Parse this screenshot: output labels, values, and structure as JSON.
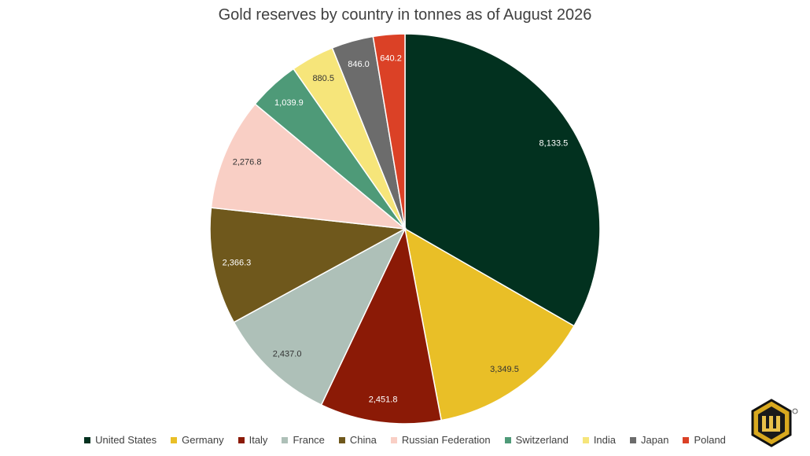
{
  "chart_data": {
    "type": "pie",
    "title": "Gold reserves by country in tonnes as of August 2026",
    "legend_position": "bottom",
    "categories": [
      "United States",
      "Germany",
      "Italy",
      "France",
      "China",
      "Russian Federation",
      "Switzerland",
      "India",
      "Japan",
      "Poland"
    ],
    "values": [
      8133.5,
      3349.5,
      2451.8,
      2437.0,
      2366.3,
      2276.8,
      1039.9,
      880.5,
      846.0,
      640.2
    ],
    "labels": [
      "8,133.5",
      "3,349.5",
      "2,451.8",
      "2,437.0",
      "2,366.3",
      "2,276.8",
      "1,039.9",
      "880.5",
      "846.0",
      "640.2"
    ],
    "colors": [
      "#02311f",
      "#e9bf27",
      "#8b1a06",
      "#aec0b8",
      "#6f581c",
      "#f9cfc5",
      "#4e9a78",
      "#f6e57a",
      "#6c6c6c",
      "#db4126"
    ],
    "label_colors": [
      "#ffffff",
      "#333333",
      "#ffffff",
      "#333333",
      "#ffffff",
      "#333333",
      "#ffffff",
      "#333333",
      "#ffffff",
      "#ffffff"
    ]
  }
}
